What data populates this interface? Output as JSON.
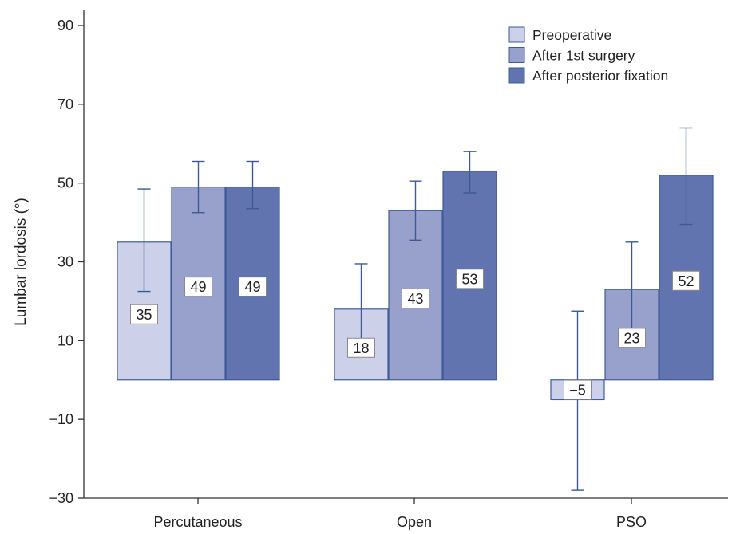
{
  "chart_data": {
    "type": "bar",
    "title": "",
    "xlabel": "",
    "ylabel": "Lumbar lordosis (°)",
    "ylim": [
      -30,
      90
    ],
    "yticks": [
      -30,
      -10,
      10,
      30,
      50,
      70,
      90
    ],
    "categories": [
      "Percutaneous",
      "Open",
      "PSO"
    ],
    "legend_position": "top-right",
    "grid": false,
    "series": [
      {
        "name": "Preoperative",
        "color": "#ccd0e8",
        "values": [
          35,
          18,
          -5
        ],
        "labels": [
          "35",
          "18",
          "−5"
        ],
        "error_low": [
          22.5,
          6,
          -28
        ],
        "error_high": [
          48.5,
          29.5,
          17.5
        ]
      },
      {
        "name": "After 1st surgery",
        "color": "#98a0cc",
        "values": [
          49,
          43,
          23
        ],
        "labels": [
          "49",
          "43",
          "23"
        ],
        "error_low": [
          42.5,
          35.5,
          10.5
        ],
        "error_high": [
          55.5,
          50.5,
          35
        ]
      },
      {
        "name": "After posterior fixation",
        "color": "#6274b0",
        "values": [
          49,
          53,
          52
        ],
        "labels": [
          "49",
          "53",
          "52"
        ],
        "error_low": [
          43.5,
          47.5,
          39.5
        ],
        "error_high": [
          55.5,
          58,
          64
        ]
      }
    ]
  }
}
